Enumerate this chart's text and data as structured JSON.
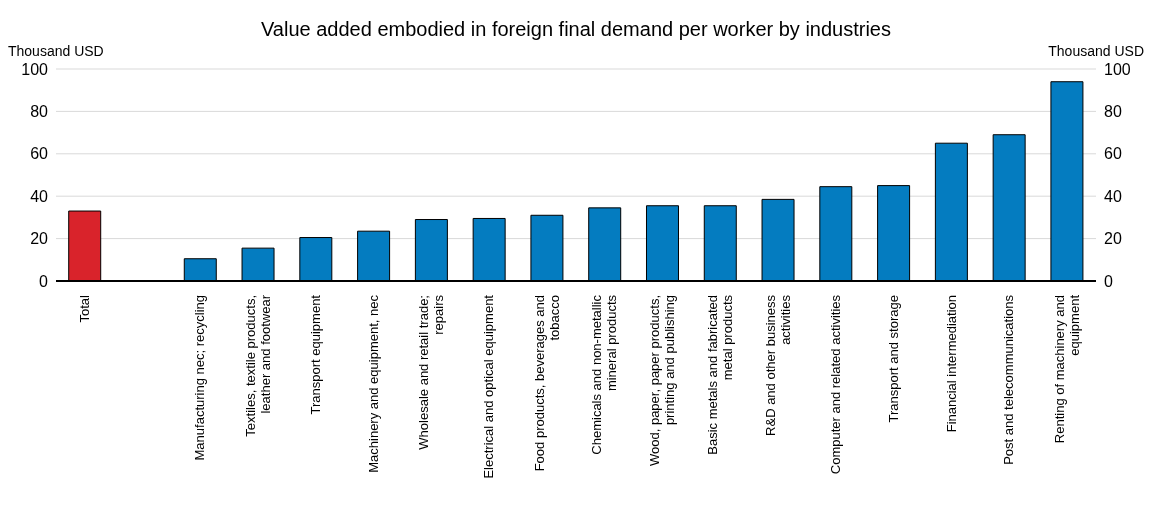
{
  "chart_data": {
    "type": "bar",
    "subtitle": "Value added embodied in foreign final demand per worker by industries",
    "ylabel": "Thousand USD",
    "y2label": "Thousand USD",
    "categories": [
      "Total",
      null,
      "Manufacturing nec; recycling",
      "Textiles, textile products, leather and footwear",
      "Transport equipment",
      "Machinery and equipment, nec",
      "Wholesale and retail trade; repairs",
      "Electrical and optical equipment",
      "Food products, beverages and tobacco",
      "Chemicals and non-metallic mineral products",
      "Wood, paper, paper products, printing and publishing",
      "Basic metals and fabricated metal products",
      "R&D and other business activities",
      "Computer and related activities",
      "Transport and storage",
      "Financial intermediation",
      "Post and telecommunications",
      "Renting of machinery and equipment"
    ],
    "values": [
      33,
      null,
      10.5,
      15.5,
      20.5,
      23.5,
      29,
      29.5,
      31,
      34.5,
      35.5,
      35.5,
      38.5,
      44.5,
      45,
      65,
      69,
      94
    ],
    "colors": [
      "#d9232b",
      null,
      "#047cc0",
      "#047cc0",
      "#047cc0",
      "#047cc0",
      "#047cc0",
      "#047cc0",
      "#047cc0",
      "#047cc0",
      "#047cc0",
      "#047cc0",
      "#047cc0",
      "#047cc0",
      "#047cc0",
      "#047cc0",
      "#047cc0",
      "#047cc0"
    ],
    "ylim": [
      0,
      100
    ],
    "yticks": [
      0,
      20,
      40,
      60,
      80,
      100
    ],
    "y2lim": [
      0,
      100
    ],
    "y2ticks": [
      0,
      20,
      40,
      60,
      80,
      100
    ],
    "grid": "y"
  }
}
